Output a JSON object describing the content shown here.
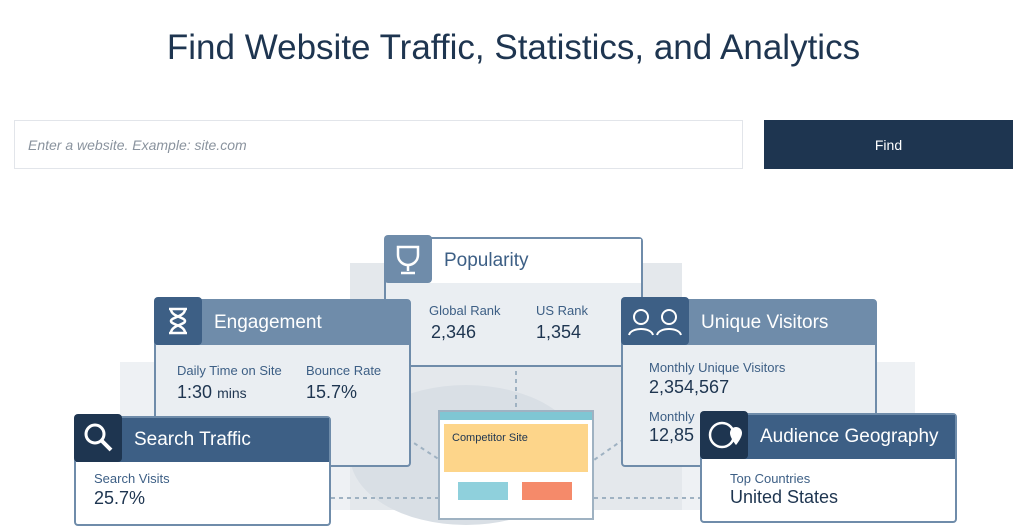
{
  "header": {
    "title": "Find Website Traffic, Statistics, and Analytics"
  },
  "search": {
    "placeholder": "Enter a website. Example: site.com",
    "button": "Find"
  },
  "cards": {
    "popularity": {
      "title": "Popularity",
      "stats": [
        {
          "label": "Global Rank",
          "value": "2,346"
        },
        {
          "label": "US Rank",
          "value": "1,354"
        }
      ]
    },
    "engagement": {
      "title": "Engagement",
      "stats": [
        {
          "label": "Daily Time on Site",
          "value": "1:30",
          "unit": "mins"
        },
        {
          "label": "Bounce Rate",
          "value": "15.7%"
        }
      ]
    },
    "unique_visitors": {
      "title": "Unique Visitors",
      "stats": [
        {
          "label": "Monthly Unique Visitors",
          "value": "2,354,567"
        },
        {
          "label": "Monthly",
          "value": "12,85"
        }
      ]
    },
    "search_traffic": {
      "title": "Search Traffic",
      "stats": [
        {
          "label": "Search Visits",
          "value": "25.7%"
        }
      ]
    },
    "audience_geography": {
      "title": "Audience Geography",
      "stats": [
        {
          "label": "Top Countries",
          "value": "United States"
        }
      ]
    }
  },
  "center": {
    "label": "Competitor Site"
  }
}
